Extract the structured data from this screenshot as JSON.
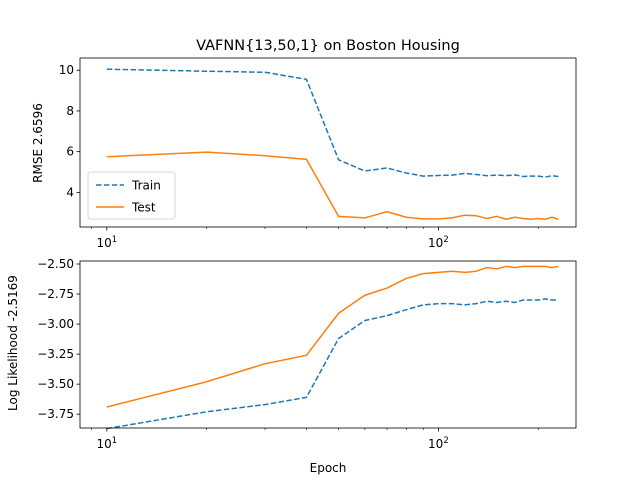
{
  "chart_data": [
    {
      "type": "line",
      "title": "VAFNN{13,50,1} on Boston Housing",
      "xlabel": "",
      "ylabel": "RMSE 2.6596",
      "xscale": "log",
      "xlim": [
        8.3,
        260
      ],
      "ylim": [
        2.3,
        10.6
      ],
      "xticks": [
        {
          "value": 10,
          "base": "10",
          "exp": "1"
        },
        {
          "value": 100,
          "base": "10",
          "exp": "2"
        }
      ],
      "yticks": [
        {
          "value": 4,
          "label": "4"
        },
        {
          "value": 6,
          "label": "6"
        },
        {
          "value": 8,
          "label": "8"
        },
        {
          "value": 10,
          "label": "10"
        }
      ],
      "legend": "lower-left",
      "grid": false,
      "x": [
        10,
        20,
        30,
        40,
        50,
        60,
        70,
        80,
        90,
        100,
        110,
        120,
        130,
        140,
        150,
        160,
        170,
        180,
        190,
        200,
        210,
        220,
        230
      ],
      "series": [
        {
          "name": "Train",
          "style": "dashed",
          "color": "#1f77b4",
          "values": [
            10.05,
            9.95,
            9.9,
            9.55,
            5.6,
            5.05,
            5.2,
            4.95,
            4.8,
            4.83,
            4.85,
            4.93,
            4.88,
            4.82,
            4.85,
            4.82,
            4.86,
            4.78,
            4.8,
            4.8,
            4.75,
            4.82,
            4.78
          ]
        },
        {
          "name": "Test",
          "style": "solid",
          "color": "#ff7f0e",
          "values": [
            5.75,
            5.98,
            5.8,
            5.62,
            2.82,
            2.75,
            3.05,
            2.78,
            2.7,
            2.7,
            2.75,
            2.88,
            2.85,
            2.72,
            2.82,
            2.68,
            2.78,
            2.72,
            2.68,
            2.72,
            2.68,
            2.78,
            2.68
          ]
        }
      ]
    },
    {
      "type": "line",
      "title": "",
      "xlabel": "Epoch",
      "ylabel": "Log Likelihood -2.5169",
      "xscale": "log",
      "xlim": [
        8.3,
        260
      ],
      "ylim": [
        -3.865,
        -2.475
      ],
      "xticks": [
        {
          "value": 10,
          "base": "10",
          "exp": "1"
        },
        {
          "value": 100,
          "base": "10",
          "exp": "2"
        }
      ],
      "yticks": [
        {
          "value": -3.75,
          "label": "−3.75"
        },
        {
          "value": -3.5,
          "label": "−3.50"
        },
        {
          "value": -3.25,
          "label": "−3.25"
        },
        {
          "value": -3.0,
          "label": "−3.00"
        },
        {
          "value": -2.75,
          "label": "−2.75"
        },
        {
          "value": -2.5,
          "label": "−2.50"
        }
      ],
      "grid": false,
      "x": [
        10,
        20,
        30,
        40,
        50,
        60,
        70,
        80,
        90,
        100,
        110,
        120,
        130,
        140,
        150,
        160,
        170,
        180,
        190,
        200,
        210,
        220,
        230
      ],
      "series": [
        {
          "name": "Train",
          "style": "dashed",
          "color": "#1f77b4",
          "values": [
            -3.87,
            -3.73,
            -3.67,
            -3.61,
            -3.12,
            -2.97,
            -2.93,
            -2.88,
            -2.84,
            -2.83,
            -2.83,
            -2.84,
            -2.83,
            -2.81,
            -2.82,
            -2.81,
            -2.82,
            -2.8,
            -2.8,
            -2.8,
            -2.79,
            -2.8,
            -2.8
          ]
        },
        {
          "name": "Test",
          "style": "solid",
          "color": "#ff7f0e",
          "values": [
            -3.69,
            -3.48,
            -3.33,
            -3.26,
            -2.91,
            -2.76,
            -2.7,
            -2.62,
            -2.58,
            -2.57,
            -2.56,
            -2.57,
            -2.56,
            -2.53,
            -2.54,
            -2.52,
            -2.53,
            -2.52,
            -2.52,
            -2.52,
            -2.52,
            -2.53,
            -2.52
          ]
        }
      ]
    }
  ]
}
